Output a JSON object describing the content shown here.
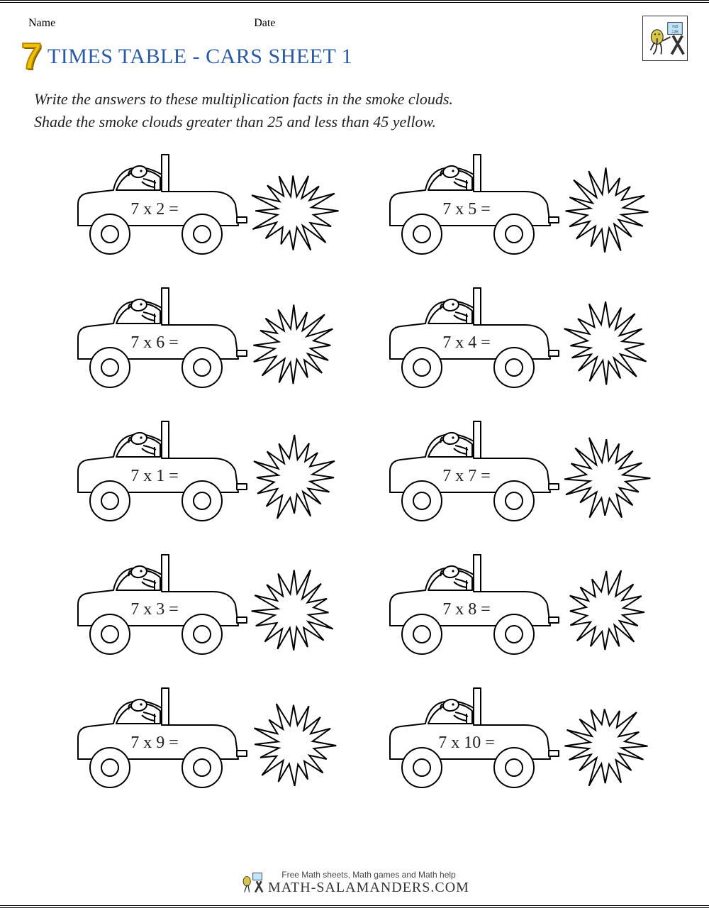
{
  "header": {
    "name_label": "Name",
    "date_label": "Date",
    "number_prefix": "7",
    "title": "TIMES TABLE - CARS SHEET 1",
    "title_color": "#2a5aa5",
    "number_fill": "#f2c200",
    "number_stroke": "#b38600"
  },
  "instructions": {
    "line1": "Write the answers to these multiplication facts in the smoke clouds.",
    "line2": "Shade the smoke clouds greater than 25 and less than 45 yellow."
  },
  "problems": [
    {
      "expr": "7 x 2 ="
    },
    {
      "expr": "7 x 5 ="
    },
    {
      "expr": "7 x 6 ="
    },
    {
      "expr": "7 x 4 ="
    },
    {
      "expr": "7 x 1 ="
    },
    {
      "expr": "7 x 7 ="
    },
    {
      "expr": "7 x 3 ="
    },
    {
      "expr": "7 x 8 ="
    },
    {
      "expr": "7 x 9 ="
    },
    {
      "expr": "7 x 10 ="
    }
  ],
  "styling": {
    "car_stroke": "#000000",
    "car_stroke_width": 2,
    "car_fill": "#ffffff",
    "cloud_stroke": "#000000",
    "cloud_points": 16,
    "expr_fontsize": 24,
    "expr_font": "Georgia, serif",
    "grid_cols": 2,
    "grid_rows": 5
  },
  "footer": {
    "tagline": "Free Math sheets, Math games and Math help",
    "site": "MATH-SALAMANDERS.COM"
  }
}
